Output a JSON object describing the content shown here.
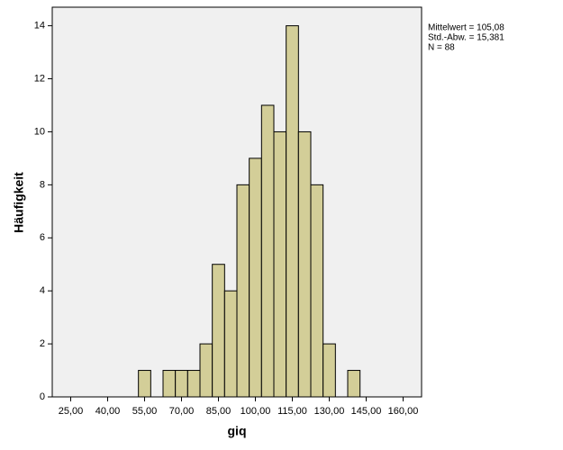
{
  "chart_data": {
    "type": "histogram",
    "x_label": "giq",
    "y_label": "Häufigkeit",
    "annotations": [
      "Mittelwert = 105,08",
      "Std.-Abw. = 15,381",
      "N = 88"
    ],
    "bins": [
      52.5,
      57.5,
      62.5,
      67.5,
      72.5,
      77.5,
      82.5,
      87.5,
      92.5,
      97.5,
      102.5,
      107.5,
      112.5,
      117.5,
      122.5,
      127.5,
      132.5,
      137.5,
      142.5
    ],
    "values": [
      1,
      0,
      1,
      1,
      1,
      2,
      5,
      4,
      8,
      9,
      11,
      10,
      14,
      10,
      8,
      2,
      0,
      1
    ],
    "color": "#d3ce98",
    "xlim": [
      17.5,
      167.5
    ],
    "xticks": [
      {
        "value": 25,
        "label": "25,00"
      },
      {
        "value": 40,
        "label": "40,00"
      },
      {
        "value": 55,
        "label": "55,00"
      },
      {
        "value": 70,
        "label": "70,00"
      },
      {
        "value": 85,
        "label": "85,00"
      },
      {
        "value": 100,
        "label": "100,00"
      },
      {
        "value": 115,
        "label": "115,00"
      },
      {
        "value": 130,
        "label": "130,00"
      },
      {
        "value": 145,
        "label": "145,00"
      },
      {
        "value": 160,
        "label": "160,00"
      }
    ],
    "ylim": [
      0,
      14.7
    ],
    "yticks": [
      0,
      2,
      4,
      6,
      8,
      10,
      12,
      14
    ]
  }
}
